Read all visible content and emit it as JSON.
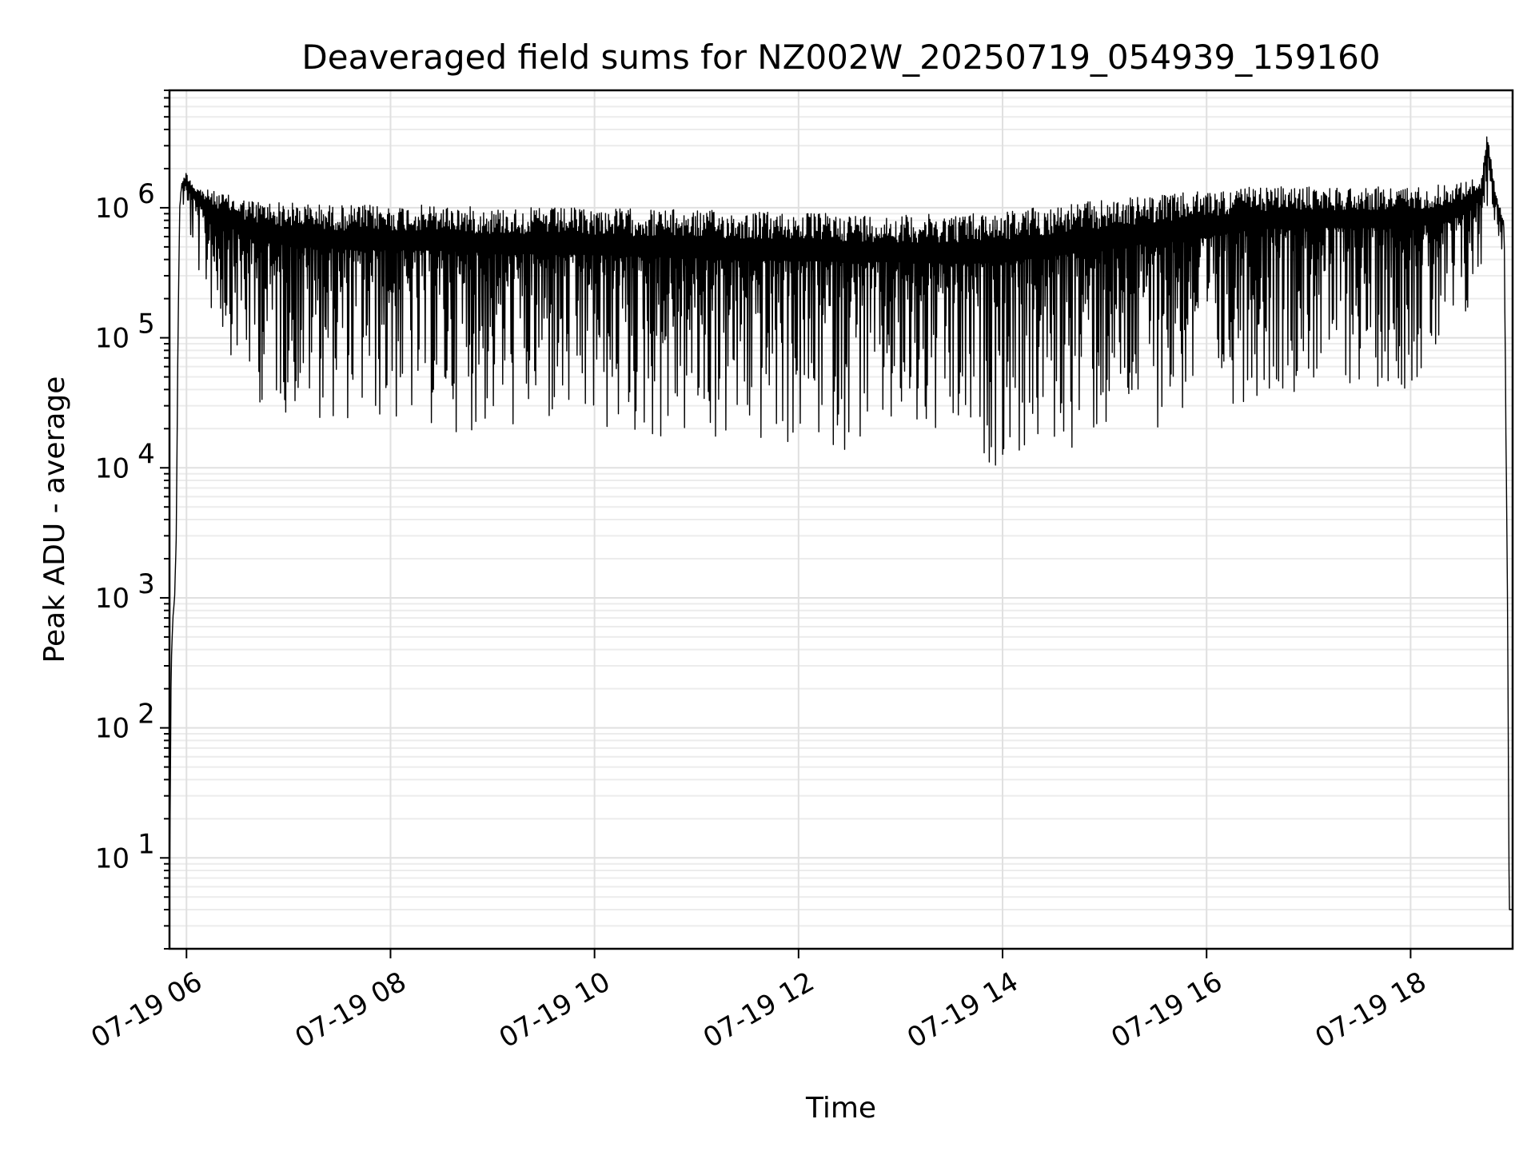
{
  "chart_data": {
    "type": "line",
    "title": "Deaveraged field sums for NZ002W_20250719_054939_159160",
    "xlabel": "Time",
    "ylabel": "Peak ADU - average",
    "yscale": "log",
    "xlim": [
      "2025-07-19T05:50",
      "2025-07-19T19:00"
    ],
    "ylim": [
      2,
      8000000
    ],
    "x_ticks": [
      {
        "label": "07-19 06",
        "value": "2025-07-19T06:00"
      },
      {
        "label": "07-19 08",
        "value": "2025-07-19T08:00"
      },
      {
        "label": "07-19 10",
        "value": "2025-07-19T10:00"
      },
      {
        "label": "07-19 12",
        "value": "2025-07-19T12:00"
      },
      {
        "label": "07-19 14",
        "value": "2025-07-19T14:00"
      },
      {
        "label": "07-19 16",
        "value": "2025-07-19T16:00"
      },
      {
        "label": "07-19 18",
        "value": "2025-07-19T18:00"
      }
    ],
    "y_ticks": [
      {
        "base": "10",
        "exp": "1",
        "value": 10
      },
      {
        "base": "10",
        "exp": "2",
        "value": 100
      },
      {
        "base": "10",
        "exp": "3",
        "value": 1000
      },
      {
        "base": "10",
        "exp": "4",
        "value": 10000
      },
      {
        "base": "10",
        "exp": "5",
        "value": 100000
      },
      {
        "base": "10",
        "exp": "6",
        "value": 1000000
      }
    ],
    "grid": true,
    "series_color": "#000000",
    "series": [
      {
        "x": [
          "2025-07-19T05:50",
          "2025-07-19T05:51",
          "2025-07-19T05:52",
          "2025-07-19T05:53",
          "2025-07-19T05:54",
          "2025-07-19T05:55",
          "2025-07-19T05:56",
          "2025-07-19T05:57",
          "2025-07-19T05:58",
          "2025-07-19T06:00",
          "2025-07-19T06:05",
          "2025-07-19T06:10",
          "2025-07-19T06:20",
          "2025-07-19T06:30",
          "2025-07-19T06:40",
          "2025-07-19T07:00",
          "2025-07-19T07:30",
          "2025-07-19T08:00",
          "2025-07-19T08:30",
          "2025-07-19T09:00",
          "2025-07-19T09:30",
          "2025-07-19T10:00",
          "2025-07-19T10:30",
          "2025-07-19T11:00",
          "2025-07-19T11:30",
          "2025-07-19T12:00",
          "2025-07-19T12:30",
          "2025-07-19T13:00",
          "2025-07-19T13:30",
          "2025-07-19T14:00",
          "2025-07-19T14:30",
          "2025-07-19T15:00",
          "2025-07-19T15:30",
          "2025-07-19T16:00",
          "2025-07-19T16:30",
          "2025-07-19T17:00",
          "2025-07-19T17:30",
          "2025-07-19T18:00",
          "2025-07-19T18:15",
          "2025-07-19T18:30",
          "2025-07-19T18:42",
          "2025-07-19T18:45",
          "2025-07-19T18:50",
          "2025-07-19T18:55",
          "2025-07-19T18:57",
          "2025-07-19T18:58",
          "2025-07-19T19:00"
        ],
        "high": [
          4,
          300,
          700,
          1000,
          3000,
          100000,
          1000000,
          1500000,
          1700000,
          1900000,
          1500000,
          1400000,
          1300000,
          1200000,
          1150000,
          1100000,
          1050000,
          1050000,
          1050000,
          1000000,
          1000000,
          1000000,
          980000,
          960000,
          940000,
          920000,
          900000,
          880000,
          900000,
          950000,
          1050000,
          1150000,
          1250000,
          1350000,
          1450000,
          1450000,
          1450000,
          1450000,
          1500000,
          1600000,
          1700000,
          4000000,
          1300000,
          800000,
          1000,
          4,
          4
        ],
        "low": [
          4,
          300,
          700,
          1000,
          3000,
          100000,
          1000000,
          1200000,
          1000000,
          600000,
          400000,
          200000,
          100000,
          60000,
          30000,
          25000,
          22000,
          20000,
          19000,
          18000,
          17000,
          16000,
          15000,
          14000,
          13000,
          13000,
          13500,
          14000,
          11000,
          10000,
          12000,
          15000,
          20000,
          25000,
          35000,
          40000,
          40000,
          40000,
          50000,
          80000,
          300000,
          1000000,
          700000,
          400000,
          1000,
          4,
          4
        ]
      }
    ]
  }
}
